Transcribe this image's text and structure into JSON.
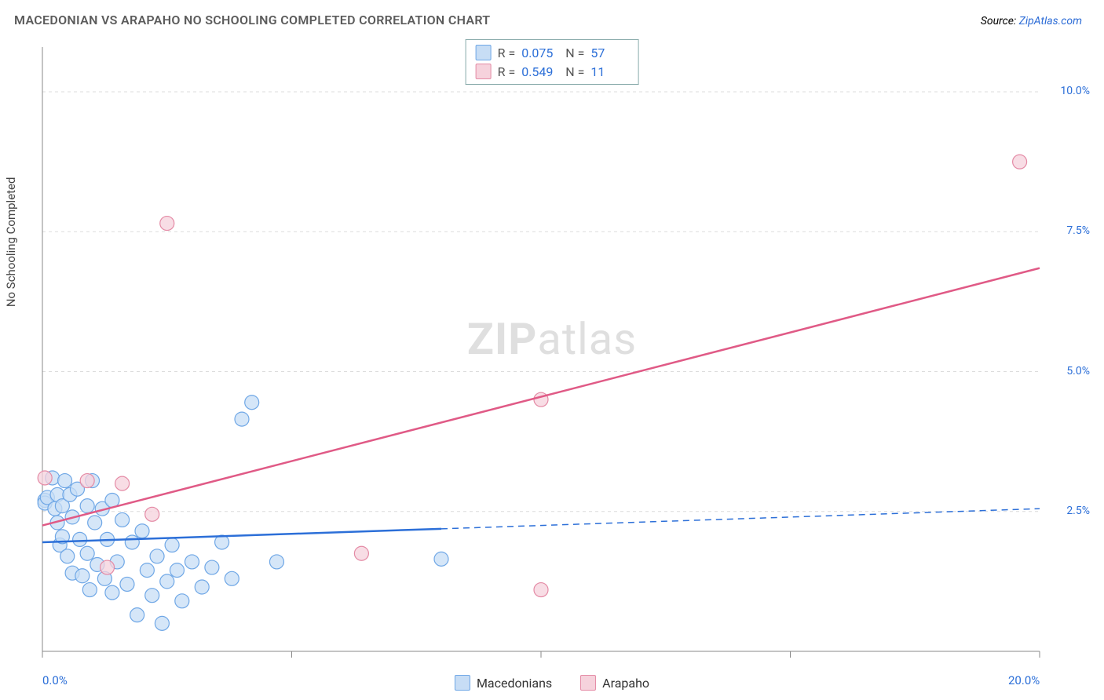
{
  "header": {
    "title": "MACEDONIAN VS ARAPAHO NO SCHOOLING COMPLETED CORRELATION CHART",
    "source_prefix": "Source: ",
    "source_link": "ZipAtlas.com",
    "title_fontsize": 16,
    "title_color": "#5b5b5b"
  },
  "watermark": {
    "bold": "ZIP",
    "light": "atlas"
  },
  "chart": {
    "type": "scatter",
    "ylabel": "No Schooling Completed",
    "background_color": "#ffffff",
    "plot_border_color": "#888888",
    "grid_color": "#dcdcdc",
    "grid_dash": "4 4",
    "xlim": [
      0,
      20
    ],
    "ylim": [
      0,
      10.8
    ],
    "x_ticks": [
      0,
      5,
      10,
      15,
      20
    ],
    "x_tick_labels_shown": {
      "0": "0.0%",
      "20": "20.0%"
    },
    "y_gridlines": [
      2.5,
      5.0,
      7.5,
      10.0
    ],
    "y_tick_labels": {
      "2.5": "2.5%",
      "5.0": "5.0%",
      "7.5": "7.5%",
      "10.0": "10.0%"
    },
    "marker_radius": 9,
    "marker_stroke_width": 1.2,
    "line_width": 2.5,
    "series": [
      {
        "name": "Macedonians",
        "fill": "#c7ddf5",
        "stroke": "#6fa7e6",
        "line_color": "#2c6fd8",
        "line_solid_until_x": 8.0,
        "line_dash_after": "8 6",
        "regression": {
          "x0": 0,
          "y0": 1.95,
          "x1": 20,
          "y1": 2.55
        },
        "points": [
          [
            0.05,
            2.7
          ],
          [
            0.05,
            2.65
          ],
          [
            0.1,
            2.75
          ],
          [
            0.2,
            3.1
          ],
          [
            0.25,
            2.55
          ],
          [
            0.3,
            2.8
          ],
          [
            0.3,
            2.3
          ],
          [
            0.35,
            1.9
          ],
          [
            0.4,
            2.05
          ],
          [
            0.4,
            2.6
          ],
          [
            0.45,
            3.05
          ],
          [
            0.5,
            1.7
          ],
          [
            0.55,
            2.8
          ],
          [
            0.6,
            2.4
          ],
          [
            0.6,
            1.4
          ],
          [
            0.7,
            2.9
          ],
          [
            0.75,
            2.0
          ],
          [
            0.8,
            1.35
          ],
          [
            0.9,
            2.6
          ],
          [
            0.9,
            1.75
          ],
          [
            0.95,
            1.1
          ],
          [
            1.0,
            3.05
          ],
          [
            1.05,
            2.3
          ],
          [
            1.1,
            1.55
          ],
          [
            1.2,
            2.55
          ],
          [
            1.25,
            1.3
          ],
          [
            1.3,
            2.0
          ],
          [
            1.4,
            2.7
          ],
          [
            1.4,
            1.05
          ],
          [
            1.5,
            1.6
          ],
          [
            1.6,
            2.35
          ],
          [
            1.7,
            1.2
          ],
          [
            1.8,
            1.95
          ],
          [
            1.9,
            0.65
          ],
          [
            2.0,
            2.15
          ],
          [
            2.1,
            1.45
          ],
          [
            2.2,
            1.0
          ],
          [
            2.3,
            1.7
          ],
          [
            2.4,
            0.5
          ],
          [
            2.5,
            1.25
          ],
          [
            2.6,
            1.9
          ],
          [
            2.7,
            1.45
          ],
          [
            2.8,
            0.9
          ],
          [
            3.0,
            1.6
          ],
          [
            3.2,
            1.15
          ],
          [
            3.4,
            1.5
          ],
          [
            3.6,
            1.95
          ],
          [
            3.8,
            1.3
          ],
          [
            4.0,
            4.15
          ],
          [
            4.2,
            4.45
          ],
          [
            4.7,
            1.6
          ],
          [
            8.0,
            1.65
          ]
        ]
      },
      {
        "name": "Arapaho",
        "fill": "#f6d2dc",
        "stroke": "#e48aa5",
        "line_color": "#e05a86",
        "line_solid_until_x": 20,
        "line_dash_after": "",
        "regression": {
          "x0": 0,
          "y0": 2.25,
          "x1": 20,
          "y1": 6.85
        },
        "points": [
          [
            0.05,
            3.1
          ],
          [
            0.9,
            3.05
          ],
          [
            1.3,
            1.5
          ],
          [
            1.6,
            3.0
          ],
          [
            2.2,
            2.45
          ],
          [
            2.5,
            7.65
          ],
          [
            6.4,
            1.75
          ],
          [
            10.0,
            4.5
          ],
          [
            10.0,
            1.1
          ],
          [
            19.6,
            8.75
          ]
        ]
      }
    ],
    "stats_box": {
      "rows": [
        {
          "swatch_fill": "#c7ddf5",
          "swatch_stroke": "#6fa7e6",
          "r": "0.075",
          "n": "57"
        },
        {
          "swatch_fill": "#f6d2dc",
          "swatch_stroke": "#e48aa5",
          "r": "0.549",
          "n": "11"
        }
      ],
      "r_label": "R =",
      "n_label": "N ="
    },
    "bottom_legend": [
      {
        "label": "Macedonians",
        "fill": "#c7ddf5",
        "stroke": "#6fa7e6"
      },
      {
        "label": "Arapaho",
        "fill": "#f6d2dc",
        "stroke": "#e48aa5"
      }
    ]
  }
}
